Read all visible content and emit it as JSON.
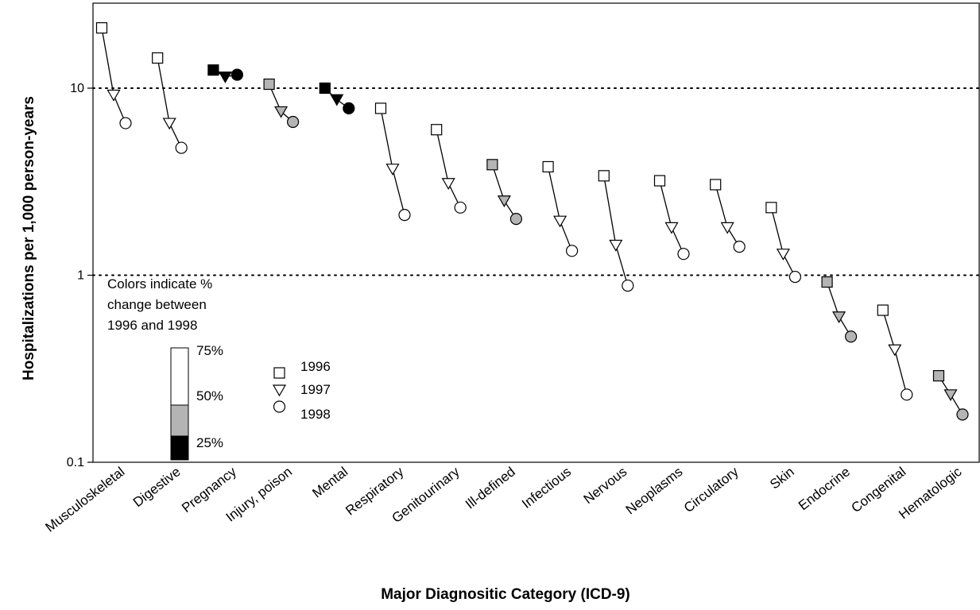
{
  "chart_data": {
    "type": "scatter",
    "title": "",
    "xlabel": "Major Diagnositic Category (ICD-9)",
    "ylabel": "Hospitalizations per 1,000 person-years",
    "yscale": "log",
    "ylim": [
      0.1,
      25
    ],
    "yticks": [
      "0.1",
      "1",
      "10"
    ],
    "reference_lines": [
      1,
      10
    ],
    "categories": [
      "Musculoskeletal",
      "Digestive",
      "Pregnancy",
      "Injury, poison",
      "Mental",
      "Respiratory",
      "Genitourinary",
      "Ill-defined",
      "Infectious",
      "Nervous",
      "Neoplasms",
      "Circulatory",
      "Skin",
      "Endocrine",
      "Congenital",
      "Hematologic"
    ],
    "series": [
      {
        "name": "1996",
        "marker": "square",
        "values": [
          21,
          14.5,
          12.5,
          10.5,
          10,
          7.8,
          6,
          3.9,
          3.8,
          3.4,
          3.2,
          3.05,
          2.3,
          0.92,
          0.65,
          0.29
        ]
      },
      {
        "name": "1997",
        "marker": "triangle-down",
        "values": [
          9.2,
          6.5,
          11.5,
          7.5,
          8.7,
          3.7,
          3.1,
          2.5,
          1.95,
          1.45,
          1.8,
          1.8,
          1.3,
          0.6,
          0.4,
          0.23
        ]
      },
      {
        "name": "1998",
        "marker": "circle",
        "values": [
          6.5,
          4.8,
          11.8,
          6.6,
          7.8,
          2.1,
          2.3,
          2.0,
          1.35,
          0.88,
          1.3,
          1.42,
          0.98,
          0.47,
          0.23,
          0.18
        ]
      }
    ],
    "change_class": [
      "white",
      "white",
      "black",
      "gray",
      "black",
      "white",
      "white",
      "gray",
      "white",
      "white",
      "white",
      "white",
      "white",
      "gray",
      "white",
      "gray"
    ],
    "legend": {
      "note": [
        "Colors indicate %",
        "change between",
        "1996 and 1998"
      ],
      "scale_labels": [
        "75%",
        "50%",
        "25%"
      ],
      "entries": [
        "1996",
        "1997",
        "1998"
      ]
    }
  },
  "colors": {
    "white": "#ffffff",
    "gray": "#b4b4b4",
    "black": "#000000",
    "line": "#000000"
  }
}
